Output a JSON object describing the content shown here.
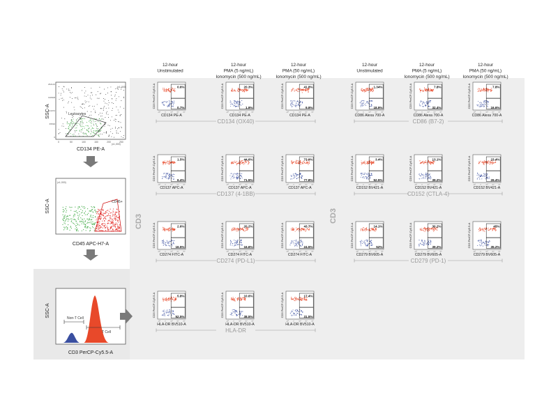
{
  "columns": [
    {
      "line1": "12-hour",
      "line2": "Unstimulated",
      "line3": ""
    },
    {
      "line1": "12-hour",
      "line2": "PMA (5 ng/mL)",
      "line3": "Ionomycin (500 ng/mL)"
    },
    {
      "line1": "12-hour",
      "line2": "PMA (50 ng/mL)",
      "line3": "Ionomycin (500 ng/mL)"
    },
    {
      "line1": "12-hour",
      "line2": "Unstimulated",
      "line3": ""
    },
    {
      "line1": "12-hour",
      "line2": "PMA (5 ng/mL)",
      "line3": "Ionomycin (500 ng/mL)"
    },
    {
      "line1": "12-hour",
      "line2": "PMA (50 ng/mL)",
      "line3": "Ionomycin (500 ng/mL)"
    }
  ],
  "gating": {
    "plot1": {
      "ylabel": "SSC-A",
      "xlabel": "CD134 PE-A",
      "gate_label": "Leukocytes",
      "yticks": [
        "262144",
        "196608",
        "131072",
        "65536",
        "0"
      ],
      "xticks": [
        "0",
        "50",
        "100",
        "150",
        "200",
        "250"
      ],
      "xunit": "(x1,000)",
      "yunit": "(x1,000)"
    },
    "plot2": {
      "ylabel": "SSC-A",
      "xlabel": "CD45 APC-H7-A",
      "gate_label": "CD45+",
      "yunit": "(x1,000)"
    },
    "plot3": {
      "ylabel": "SSC-A",
      "xlabel": "CD3 PerCP-Cy5.5-A",
      "gate_non_t": "Non-T Cell",
      "gate_t": "T Cell"
    }
  },
  "side_labels": {
    "left": "CD3",
    "right": "CD3"
  },
  "plot_ylabel": "CD3 PerCP-Cy5.5-A",
  "chart_data": [
    {
      "type": "scatter",
      "marker": "CD134 (OX40)",
      "group_label": "CD134 (OX40)",
      "channel": "CD134 PE-A",
      "panel": "left",
      "row": 0,
      "quadrant_pct": [
        {
          "upper": "0.6%",
          "lower": "0.7%"
        },
        {
          "upper": "20.3%",
          "lower": "1.9%"
        },
        {
          "upper": "41.8%",
          "lower": "9.9%"
        }
      ]
    },
    {
      "type": "scatter",
      "marker": "CD86 (B7-2)",
      "group_label": "CD86 (B7-2)",
      "channel": "CD86 Alexa 700-A",
      "panel": "right",
      "row": 0,
      "quadrant_pct": [
        {
          "upper": "1.34%",
          "lower": "18.9%"
        },
        {
          "upper": "7.8%",
          "lower": "32.4%"
        },
        {
          "upper": "7.8%",
          "lower": "16.6%"
        }
      ]
    },
    {
      "type": "scatter",
      "marker": "CD137 (4-1BB)",
      "group_label": "CD137 (4-1BB)",
      "channel": "CD137 APC-A",
      "panel": "left",
      "row": 1,
      "quadrant_pct": [
        {
          "upper": "1.5%",
          "lower": "6.4%"
        },
        {
          "upper": "44.6%",
          "lower": "71.5%"
        },
        {
          "upper": "73.9%",
          "lower": "77.8%"
        }
      ]
    },
    {
      "type": "scatter",
      "marker": "CD152 (CTLA-4)",
      "group_label": "CD152 (CTLA-4)",
      "channel": "CD152 BV421-A",
      "panel": "right",
      "row": 1,
      "quadrant_pct": [
        {
          "upper": "3.4%",
          "lower": "52.5%"
        },
        {
          "upper": "13.1%",
          "lower": "39.2%"
        },
        {
          "upper": "23.4%",
          "lower": "26.4%"
        }
      ]
    },
    {
      "type": "scatter",
      "marker": "CD274 (PD-L1)",
      "group_label": "CD274 (PD-L1)",
      "channel": "CD274 FITC-A",
      "panel": "left",
      "row": 2,
      "quadrant_pct": [
        {
          "upper": "2.6%",
          "lower": "16.5%"
        },
        {
          "upper": "20.2%",
          "lower": "16.6%"
        },
        {
          "upper": "43.7%",
          "lower": "24.5%"
        }
      ]
    },
    {
      "type": "scatter",
      "marker": "CD279 (PD-1)",
      "group_label": "CD279 (PD-1)",
      "channel": "CD279 BV605-A",
      "panel": "right",
      "row": 2,
      "quadrant_pct": [
        {
          "upper": "14.1%",
          "lower": "52%"
        },
        {
          "upper": "30.2%",
          "lower": "39.2%"
        },
        {
          "upper": "45%",
          "lower": "35.2%"
        }
      ]
    },
    {
      "type": "scatter",
      "marker": "HLA-DR",
      "group_label": "HLA-DR",
      "channel": "HLA-DR BV510-A",
      "panel": "left",
      "row": 3,
      "quadrant_pct": [
        {
          "upper": "5.8%",
          "lower": "52.5%"
        },
        {
          "upper": "10.6%",
          "lower": "38.5%"
        },
        {
          "upper": "17.4%",
          "lower": "31.5%"
        }
      ]
    }
  ],
  "colors": {
    "panel_bg": "#eeeeee",
    "gate_bg": "#e9e9e9",
    "red": "#e8492a",
    "blue": "#3a4fa0",
    "green": "#4caf50",
    "label_gray": "#999999",
    "arrow": "#7a7a7a"
  }
}
